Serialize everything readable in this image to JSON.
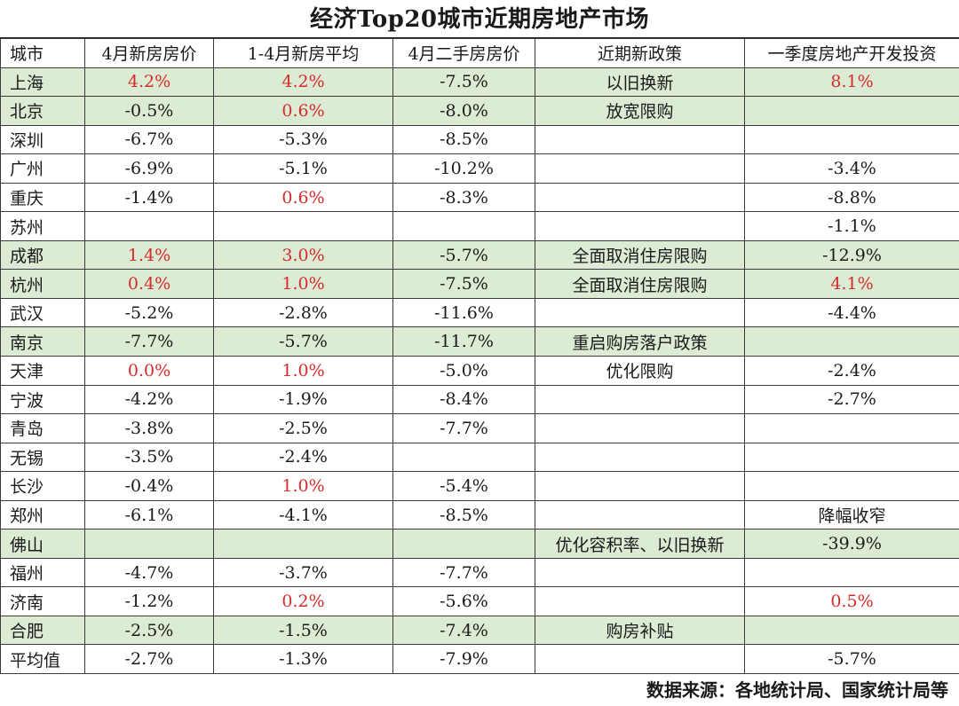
{
  "title": "经济Top20城市近期房地产市场",
  "headers": [
    "城市",
    "4月新房房价",
    "1-4月新房平均",
    "4月二手房房价",
    "近期新政策",
    "一季度房地产开发投资"
  ],
  "rows": [
    {
      "c": [
        "上海",
        "4.2%",
        "4.2%",
        "-7.5%",
        "以旧换新",
        "8.1%"
      ],
      "red": [
        1,
        2,
        5
      ],
      "hl": true
    },
    {
      "c": [
        "北京",
        "-0.5%",
        "0.6%",
        "-8.0%",
        "放宽限购",
        ""
      ],
      "red": [
        2
      ],
      "hl": true
    },
    {
      "c": [
        "深圳",
        "-6.7%",
        "-5.3%",
        "-8.5%",
        "",
        ""
      ],
      "red": [],
      "hl": false
    },
    {
      "c": [
        "广州",
        "-6.9%",
        "-5.1%",
        "-10.2%",
        "",
        "-3.4%"
      ],
      "red": [],
      "hl": false
    },
    {
      "c": [
        "重庆",
        "-1.4%",
        "0.6%",
        "-8.3%",
        "",
        "-8.8%"
      ],
      "red": [
        2
      ],
      "hl": false
    },
    {
      "c": [
        "苏州",
        "",
        "",
        "",
        "",
        "-1.1%"
      ],
      "red": [],
      "hl": false
    },
    {
      "c": [
        "成都",
        "1.4%",
        "3.0%",
        "-5.7%",
        "全面取消住房限购",
        "-12.9%"
      ],
      "red": [
        1,
        2
      ],
      "hl": true
    },
    {
      "c": [
        "杭州",
        "0.4%",
        "1.0%",
        "-7.5%",
        "全面取消住房限购",
        "4.1%"
      ],
      "red": [
        1,
        2,
        5
      ],
      "hl": true
    },
    {
      "c": [
        "武汉",
        "-5.2%",
        "-2.8%",
        "-11.6%",
        "",
        "-4.4%"
      ],
      "red": [],
      "hl": false
    },
    {
      "c": [
        "南京",
        "-7.7%",
        "-5.7%",
        "-11.7%",
        "重启购房落户政策",
        ""
      ],
      "red": [],
      "hl": true
    },
    {
      "c": [
        "天津",
        "0.0%",
        "1.0%",
        "-5.0%",
        "优化限购",
        "-2.4%"
      ],
      "red": [
        1,
        2
      ],
      "hl": false
    },
    {
      "c": [
        "宁波",
        "-4.2%",
        "-1.9%",
        "-8.4%",
        "",
        "-2.7%"
      ],
      "red": [],
      "hl": false
    },
    {
      "c": [
        "青岛",
        "-3.8%",
        "-2.5%",
        "-7.7%",
        "",
        ""
      ],
      "red": [],
      "hl": false
    },
    {
      "c": [
        "无锡",
        "-3.5%",
        "-2.4%",
        "",
        "",
        ""
      ],
      "red": [],
      "hl": false
    },
    {
      "c": [
        "长沙",
        "-0.4%",
        "1.0%",
        "-5.4%",
        "",
        ""
      ],
      "red": [
        2
      ],
      "hl": false
    },
    {
      "c": [
        "郑州",
        "-6.1%",
        "-4.1%",
        "-8.5%",
        "",
        "降幅收窄"
      ],
      "red": [],
      "hl": false
    },
    {
      "c": [
        "佛山",
        "",
        "",
        "",
        "优化容积率、以旧换新",
        "-39.9%"
      ],
      "red": [],
      "hl": true
    },
    {
      "c": [
        "福州",
        "-4.7%",
        "-3.7%",
        "-7.7%",
        "",
        ""
      ],
      "red": [],
      "hl": false
    },
    {
      "c": [
        "济南",
        "-1.2%",
        "0.2%",
        "-5.6%",
        "",
        "0.5%"
      ],
      "red": [
        2,
        5
      ],
      "hl": false
    },
    {
      "c": [
        "合肥",
        "-2.5%",
        "-1.5%",
        "-7.4%",
        "购房补贴",
        ""
      ],
      "red": [],
      "hl": true
    },
    {
      "c": [
        "平均值",
        "-2.7%",
        "-1.3%",
        "-7.9%",
        "",
        "-5.7%"
      ],
      "red": [],
      "hl": false
    }
  ],
  "footer": "数据来源：各地统计局、国家统计局等",
  "colors": {
    "highlight": "#dcecd4",
    "negative_text": "#1a1a1a",
    "positive_text": "#d52b2b"
  }
}
